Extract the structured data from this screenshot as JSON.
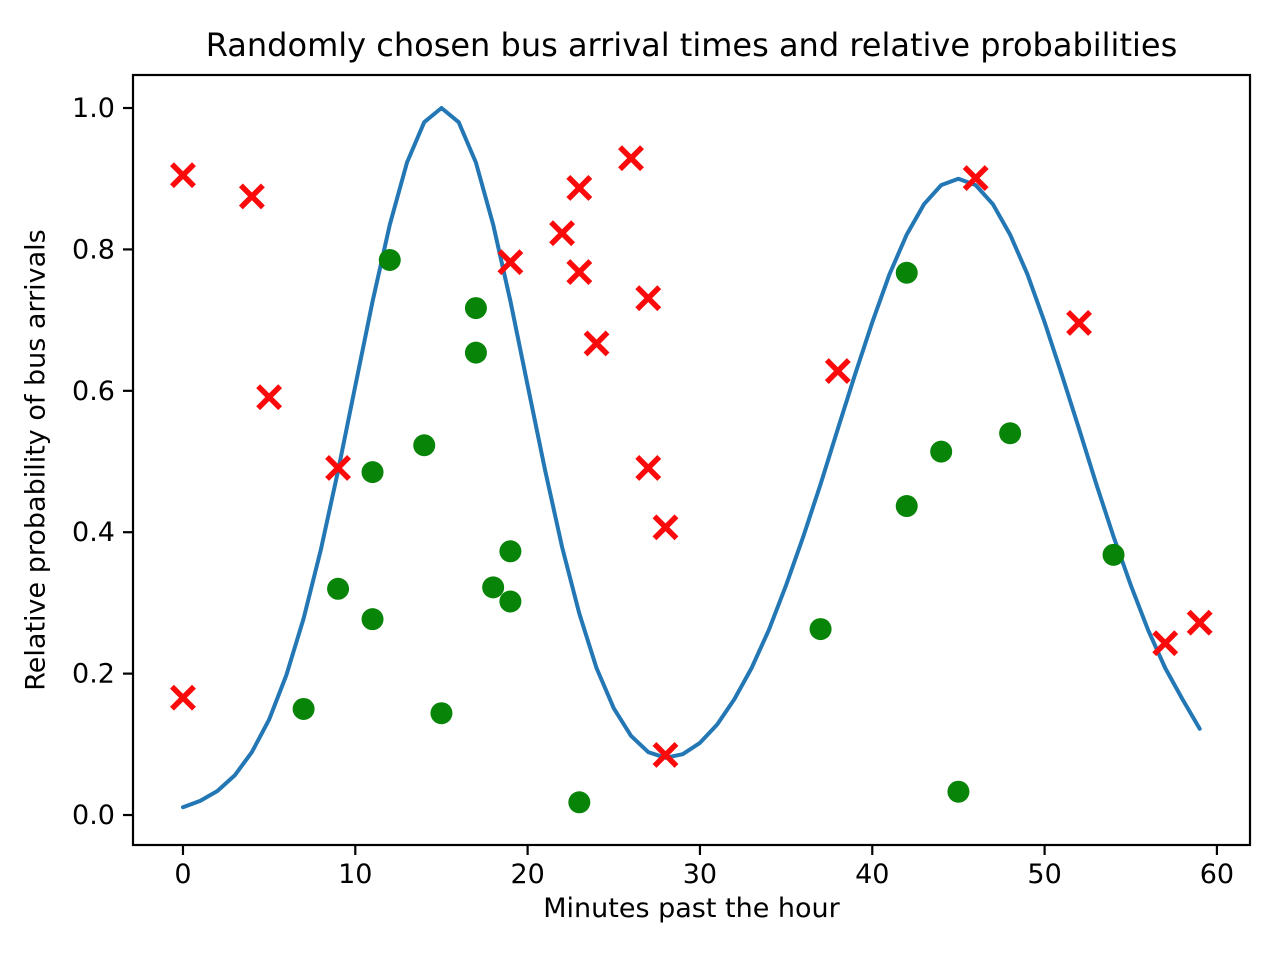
{
  "figure": {
    "background": "#ffffff"
  },
  "chart_data": {
    "type": "line",
    "title": "Randomly chosen bus arrival times and relative probabilities",
    "xlabel": "Minutes past the hour",
    "ylabel": "Relative probability of bus arrivals",
    "xlim": [
      -2.9,
      61.92
    ],
    "ylim": [
      -0.0424,
      1.0467
    ],
    "x_ticks": [
      0,
      10,
      20,
      30,
      40,
      50,
      60
    ],
    "x_tick_labels": [
      "0",
      "10",
      "20",
      "30",
      "40",
      "50",
      "60"
    ],
    "y_ticks": [
      0.0,
      0.2,
      0.4,
      0.6,
      0.8,
      1.0
    ],
    "y_tick_labels": [
      "0.0",
      "0.2",
      "0.4",
      "0.6",
      "0.8",
      "1.0"
    ],
    "grid": false,
    "legend": null,
    "axis_color": "#000000",
    "series": [
      {
        "name": "probability-curve",
        "type": "line",
        "color": "#2277b4",
        "linewidth": 4,
        "x": [
          0,
          1,
          2,
          3,
          4,
          5,
          6,
          7,
          8,
          9,
          10,
          11,
          12,
          13,
          14,
          15,
          16,
          17,
          18,
          19,
          20,
          21,
          22,
          23,
          24,
          25,
          26,
          27,
          28,
          29,
          30,
          31,
          32,
          33,
          34,
          35,
          36,
          37,
          38,
          39,
          40,
          41,
          42,
          43,
          44,
          45,
          46,
          47,
          48,
          49,
          50,
          51,
          52,
          53,
          54,
          55,
          56,
          57,
          58,
          59
        ],
        "y": [
          0.011,
          0.02,
          0.034,
          0.056,
          0.089,
          0.135,
          0.198,
          0.278,
          0.375,
          0.487,
          0.607,
          0.726,
          0.835,
          0.923,
          0.98,
          1.0,
          0.98,
          0.923,
          0.835,
          0.727,
          0.608,
          0.489,
          0.379,
          0.285,
          0.208,
          0.151,
          0.112,
          0.089,
          0.081,
          0.086,
          0.102,
          0.128,
          0.164,
          0.208,
          0.262,
          0.325,
          0.394,
          0.468,
          0.546,
          0.623,
          0.697,
          0.765,
          0.821,
          0.864,
          0.891,
          0.9,
          0.891,
          0.864,
          0.821,
          0.765,
          0.697,
          0.623,
          0.546,
          0.468,
          0.394,
          0.325,
          0.262,
          0.208,
          0.164,
          0.122
        ]
      },
      {
        "name": "accepted-samples",
        "type": "scatter",
        "marker": "circle-marker",
        "color": "#088408",
        "marker_radius": 11,
        "points": [
          [
            7,
            0.15
          ],
          [
            9,
            0.32
          ],
          [
            11,
            0.485
          ],
          [
            11,
            0.277
          ],
          [
            12,
            0.785
          ],
          [
            14,
            0.523
          ],
          [
            15,
            0.144
          ],
          [
            17,
            0.717
          ],
          [
            17,
            0.654
          ],
          [
            18,
            0.322
          ],
          [
            19,
            0.373
          ],
          [
            19,
            0.302
          ],
          [
            23,
            0.018
          ],
          [
            37,
            0.263
          ],
          [
            42,
            0.767
          ],
          [
            42,
            0.437
          ],
          [
            44,
            0.514
          ],
          [
            45,
            0.033
          ],
          [
            48,
            0.54
          ],
          [
            54,
            0.368
          ]
        ]
      },
      {
        "name": "rejected-samples",
        "type": "scatter",
        "marker": "x-marker",
        "color": "#fa0a0a",
        "marker_radius": 11,
        "points": [
          [
            0,
            0.905
          ],
          [
            0,
            0.166
          ],
          [
            4,
            0.875
          ],
          [
            5,
            0.591
          ],
          [
            9,
            0.491
          ],
          [
            19,
            0.782
          ],
          [
            22,
            0.823
          ],
          [
            23,
            0.887
          ],
          [
            23,
            0.768
          ],
          [
            24,
            0.667
          ],
          [
            26,
            0.929
          ],
          [
            27,
            0.731
          ],
          [
            27,
            0.491
          ],
          [
            28,
            0.407
          ],
          [
            28,
            0.085
          ],
          [
            38,
            0.628
          ],
          [
            46,
            0.901
          ],
          [
            52,
            0.696
          ],
          [
            57,
            0.243
          ],
          [
            59,
            0.272
          ]
        ]
      }
    ]
  }
}
